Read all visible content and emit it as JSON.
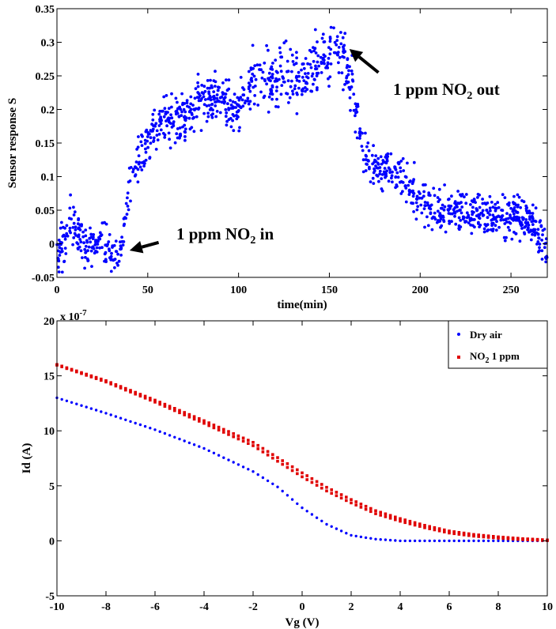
{
  "chart_data": [
    {
      "type": "scatter",
      "title": "",
      "xlabel": "time(min)",
      "ylabel": "Sensor response S",
      "xlim": [
        0,
        270
      ],
      "ylim": [
        -0.05,
        0.35
      ],
      "xticks": [
        "0",
        "50",
        "100",
        "150",
        "200",
        "250"
      ],
      "yticks": [
        "-0.05",
        "0",
        "0.05",
        "0.1",
        "0.15",
        "0.2",
        "0.25",
        "0.3",
        "0.35"
      ],
      "grid": false,
      "series": [
        {
          "color": "#0000ff",
          "marker": "dot",
          "point_count": 1300,
          "points": [
            [
              0,
              -0.01
            ],
            [
              5,
              0.0
            ],
            [
              8,
              0.04
            ],
            [
              10,
              0.02
            ],
            [
              15,
              0.0
            ],
            [
              20,
              0.0
            ],
            [
              25,
              0.0
            ],
            [
              30,
              -0.01
            ],
            [
              34,
              -0.015
            ],
            [
              36,
              0.0
            ],
            [
              38,
              0.04
            ],
            [
              40,
              0.08
            ],
            [
              45,
              0.12
            ],
            [
              50,
              0.15
            ],
            [
              55,
              0.17
            ],
            [
              60,
              0.19
            ],
            [
              65,
              0.18
            ],
            [
              70,
              0.19
            ],
            [
              75,
              0.2
            ],
            [
              80,
              0.21
            ],
            [
              85,
              0.22
            ],
            [
              90,
              0.22
            ],
            [
              95,
              0.2
            ],
            [
              100,
              0.2
            ],
            [
              105,
              0.24
            ],
            [
              110,
              0.24
            ],
            [
              115,
              0.24
            ],
            [
              120,
              0.24
            ],
            [
              125,
              0.25
            ],
            [
              130,
              0.25
            ],
            [
              135,
              0.24
            ],
            [
              140,
              0.26
            ],
            [
              145,
              0.27
            ],
            [
              150,
              0.28
            ],
            [
              155,
              0.29
            ],
            [
              158,
              0.27
            ],
            [
              160,
              0.26
            ],
            [
              163,
              0.23
            ],
            [
              165,
              0.2
            ],
            [
              167,
              0.16
            ],
            [
              170,
              0.13
            ],
            [
              175,
              0.11
            ],
            [
              180,
              0.11
            ],
            [
              185,
              0.11
            ],
            [
              190,
              0.1
            ],
            [
              195,
              0.08
            ],
            [
              200,
              0.07
            ],
            [
              205,
              0.06
            ],
            [
              210,
              0.05
            ],
            [
              220,
              0.05
            ],
            [
              230,
              0.05
            ],
            [
              240,
              0.045
            ],
            [
              250,
              0.04
            ],
            [
              255,
              0.045
            ],
            [
              260,
              0.035
            ],
            [
              265,
              0.01
            ],
            [
              268,
              -0.005
            ]
          ]
        }
      ],
      "annotations": [
        {
          "text_pre": "1 ppm NO",
          "sub": "2",
          "text_post": " in",
          "arrow_to": [
            40,
            -0.01
          ],
          "arrow_from": [
            56,
            0.002
          ]
        },
        {
          "text_pre": "1 ppm NO",
          "sub": "2",
          "text_post": " out",
          "arrow_to": [
            161,
            0.29
          ],
          "arrow_from": [
            177,
            0.255
          ]
        }
      ]
    },
    {
      "type": "scatter",
      "title": "",
      "xlabel": "Vg (V)",
      "ylabel": "Id (A)",
      "xlim": [
        -10,
        10
      ],
      "ylim": [
        -5,
        20
      ],
      "y_multiplier": "x 10",
      "y_multiplier_exp": "-7",
      "xticks": [
        "-10",
        "-8",
        "-6",
        "-4",
        "-2",
        "0",
        "2",
        "4",
        "6",
        "8",
        "10"
      ],
      "yticks": [
        "-5",
        "0",
        "5",
        "10",
        "15",
        "20"
      ],
      "grid": false,
      "legend_position": "top-right",
      "series": [
        {
          "name": "Dry air",
          "color": "#0000ff",
          "marker": "dot",
          "points": [
            [
              -10,
              13.0
            ],
            [
              -8,
              11.6
            ],
            [
              -6,
              10.1
            ],
            [
              -4,
              8.4
            ],
            [
              -2,
              6.3
            ],
            [
              -1,
              4.9
            ],
            [
              0,
              3.0
            ],
            [
              1,
              1.5
            ],
            [
              2,
              0.5
            ],
            [
              3,
              0.15
            ],
            [
              4,
              0.0
            ],
            [
              6,
              0.0
            ],
            [
              8,
              0.0
            ],
            [
              10,
              0.0
            ]
          ]
        },
        {
          "name": "NO",
          "name_sub": "2",
          "name_post": " 1 ppm",
          "color": "#e00000",
          "marker": "square",
          "points": [
            [
              -10,
              16.0
            ],
            [
              -8,
              14.5
            ],
            [
              -6,
              12.7
            ],
            [
              -4,
              10.8
            ],
            [
              -2,
              8.8
            ],
            [
              0,
              6.0
            ],
            [
              1,
              4.7
            ],
            [
              2,
              3.6
            ],
            [
              3,
              2.6
            ],
            [
              4,
              1.9
            ],
            [
              5,
              1.3
            ],
            [
              6,
              0.8
            ],
            [
              7,
              0.5
            ],
            [
              8,
              0.3
            ],
            [
              9,
              0.15
            ],
            [
              10,
              0.05
            ]
          ]
        }
      ]
    }
  ]
}
